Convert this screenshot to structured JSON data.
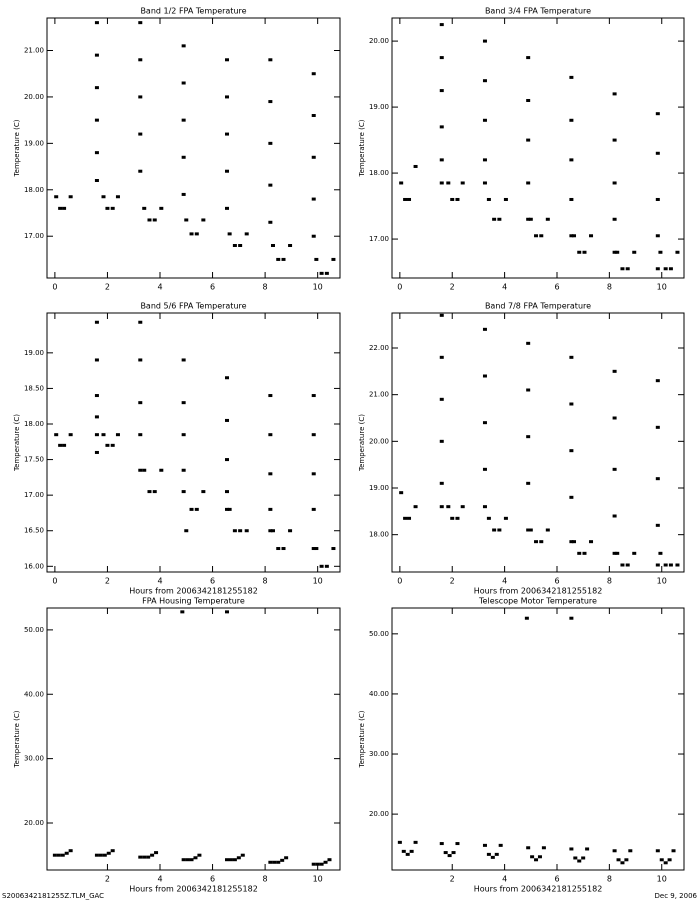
{
  "chart_data": [
    {
      "type": "scatter",
      "title": "Band 1/2 FPA Temperature",
      "y_label": "Temperature (C)",
      "color": "#000000",
      "xlim": [
        -0.3,
        10.85
      ],
      "xticks": [
        0,
        2,
        4,
        6,
        8,
        10
      ],
      "ylim": [
        16.1,
        21.7
      ],
      "yticks": [
        {
          "value": 17,
          "label": "17.00"
        },
        {
          "value": 18,
          "label": "18.00"
        },
        {
          "value": 19,
          "label": "19.00"
        },
        {
          "value": 20,
          "label": "20.00"
        },
        {
          "value": 21,
          "label": "21.00"
        }
      ],
      "x": [
        0.05,
        0.2,
        0.35,
        0.6,
        1.6,
        1.6,
        1.6,
        1.6,
        1.6,
        1.6,
        1.85,
        2.0,
        2.2,
        2.4,
        3.25,
        3.25,
        3.25,
        3.25,
        3.25,
        3.4,
        3.6,
        3.8,
        4.05,
        4.9,
        4.9,
        4.9,
        4.9,
        4.9,
        5.0,
        5.2,
        5.4,
        5.65,
        6.55,
        6.55,
        6.55,
        6.55,
        6.55,
        6.65,
        6.85,
        7.05,
        7.3,
        8.2,
        8.2,
        8.2,
        8.2,
        8.2,
        8.3,
        8.5,
        8.7,
        8.95,
        9.85,
        9.85,
        9.85,
        9.85,
        9.85,
        9.95,
        10.15,
        10.35,
        10.6
      ],
      "values": [
        17.85,
        17.6,
        17.6,
        17.85,
        21.6,
        20.9,
        20.2,
        19.5,
        18.8,
        18.2,
        17.85,
        17.6,
        17.6,
        17.85,
        21.6,
        20.8,
        20.0,
        19.2,
        18.4,
        17.6,
        17.35,
        17.35,
        17.6,
        21.1,
        20.3,
        19.5,
        18.7,
        17.9,
        17.35,
        17.05,
        17.05,
        17.35,
        20.8,
        20.0,
        19.2,
        18.4,
        17.6,
        17.05,
        16.8,
        16.8,
        17.05,
        20.8,
        19.9,
        19.0,
        18.1,
        17.3,
        16.8,
        16.5,
        16.5,
        16.8,
        20.5,
        19.6,
        18.7,
        17.8,
        17.0,
        16.5,
        16.2,
        16.2,
        16.5
      ]
    },
    {
      "type": "scatter",
      "title": "Band 3/4 FPA Temperature",
      "y_label": "Temperature (C)",
      "color": "#000000",
      "xlim": [
        -0.3,
        10.85
      ],
      "xticks": [
        0,
        2,
        4,
        6,
        8,
        10
      ],
      "ylim": [
        16.41,
        20.35
      ],
      "yticks": [
        {
          "value": 17,
          "label": "17.00"
        },
        {
          "value": 18,
          "label": "18.00"
        },
        {
          "value": 19,
          "label": "19.00"
        },
        {
          "value": 20,
          "label": "20.00"
        }
      ],
      "x": [
        0.05,
        0.2,
        0.35,
        0.6,
        1.6,
        1.6,
        1.6,
        1.6,
        1.6,
        1.6,
        1.85,
        2.0,
        2.2,
        2.4,
        3.25,
        3.25,
        3.25,
        3.25,
        3.25,
        3.4,
        3.6,
        3.8,
        4.05,
        4.9,
        4.9,
        4.9,
        4.9,
        4.9,
        5.0,
        5.2,
        5.4,
        5.65,
        6.55,
        6.55,
        6.55,
        6.55,
        6.55,
        6.65,
        6.85,
        7.05,
        7.3,
        8.2,
        8.2,
        8.2,
        8.2,
        8.2,
        8.3,
        8.5,
        8.7,
        8.95,
        9.85,
        9.85,
        9.85,
        9.85,
        9.85,
        9.95,
        10.15,
        10.35,
        10.6
      ],
      "values": [
        17.85,
        17.6,
        17.6,
        18.1,
        20.25,
        19.75,
        19.25,
        18.7,
        18.2,
        17.85,
        17.85,
        17.6,
        17.6,
        17.85,
        20.0,
        19.4,
        18.8,
        18.2,
        17.85,
        17.6,
        17.3,
        17.3,
        17.6,
        19.75,
        19.1,
        18.5,
        17.85,
        17.3,
        17.3,
        17.05,
        17.05,
        17.3,
        19.45,
        18.8,
        18.2,
        17.6,
        17.05,
        17.05,
        16.8,
        16.8,
        17.05,
        19.2,
        18.5,
        17.85,
        17.3,
        16.8,
        16.8,
        16.55,
        16.55,
        16.8,
        18.9,
        18.3,
        17.6,
        17.05,
        16.55,
        16.8,
        16.55,
        16.55,
        16.8
      ]
    },
    {
      "type": "scatter",
      "title": "Band 5/6 FPA Temperature",
      "x_label": "Hours from 2006342181255182",
      "y_label": "Temperature (C)",
      "color": "#000000",
      "xlim": [
        -0.3,
        10.85
      ],
      "xticks": [
        0,
        2,
        4,
        6,
        8,
        10
      ],
      "ylim": [
        15.92,
        19.56
      ],
      "yticks": [
        {
          "value": 16,
          "label": "16.00"
        },
        {
          "value": 16.5,
          "label": "16.50"
        },
        {
          "value": 17,
          "label": "17.00"
        },
        {
          "value": 17.5,
          "label": "17.50"
        },
        {
          "value": 18,
          "label": "18.00"
        },
        {
          "value": 18.5,
          "label": "18.50"
        },
        {
          "value": 19,
          "label": "19.00"
        }
      ],
      "x": [
        0.05,
        0.2,
        0.35,
        0.6,
        1.6,
        1.6,
        1.6,
        1.6,
        1.6,
        1.6,
        1.85,
        2.0,
        2.2,
        2.4,
        3.25,
        3.25,
        3.25,
        3.25,
        3.25,
        3.4,
        3.6,
        3.8,
        4.05,
        4.9,
        4.9,
        4.9,
        4.9,
        4.9,
        5.0,
        5.2,
        5.4,
        5.65,
        6.55,
        6.55,
        6.55,
        6.55,
        6.55,
        6.65,
        6.85,
        7.05,
        7.3,
        8.2,
        8.2,
        8.2,
        8.2,
        8.2,
        8.3,
        8.5,
        8.7,
        8.95,
        9.85,
        9.85,
        9.85,
        9.85,
        9.85,
        9.95,
        10.15,
        10.35,
        10.6
      ],
      "values": [
        17.85,
        17.7,
        17.7,
        17.85,
        19.43,
        18.9,
        18.4,
        18.1,
        17.85,
        17.6,
        17.85,
        17.7,
        17.7,
        17.85,
        19.43,
        18.9,
        18.3,
        17.85,
        17.35,
        17.35,
        17.05,
        17.05,
        17.35,
        18.9,
        18.3,
        17.85,
        17.35,
        17.05,
        16.5,
        16.8,
        16.8,
        17.05,
        18.65,
        18.05,
        17.5,
        17.05,
        16.8,
        16.8,
        16.5,
        16.5,
        16.5,
        18.4,
        17.85,
        17.3,
        16.8,
        16.5,
        16.5,
        16.25,
        16.25,
        16.5,
        18.4,
        17.85,
        17.3,
        16.8,
        16.25,
        16.25,
        16.0,
        16.0,
        16.25
      ]
    },
    {
      "type": "scatter",
      "title": "Band 7/8 FPA Temperature",
      "x_label": "Hours from 2006342181255182",
      "y_label": "Temperature (C)",
      "color": "#000000",
      "xlim": [
        -0.3,
        10.85
      ],
      "xticks": [
        0,
        2,
        4,
        6,
        8,
        10
      ],
      "ylim": [
        17.2,
        22.75
      ],
      "yticks": [
        {
          "value": 18,
          "label": "18.00"
        },
        {
          "value": 19,
          "label": "19.00"
        },
        {
          "value": 20,
          "label": "20.00"
        },
        {
          "value": 21,
          "label": "21.00"
        },
        {
          "value": 22,
          "label": "22.00"
        }
      ],
      "x": [
        0.05,
        0.2,
        0.35,
        0.6,
        1.6,
        1.6,
        1.6,
        1.6,
        1.6,
        1.6,
        1.85,
        2.0,
        2.2,
        2.4,
        3.25,
        3.25,
        3.25,
        3.25,
        3.25,
        3.4,
        3.6,
        3.8,
        4.05,
        4.9,
        4.9,
        4.9,
        4.9,
        4.9,
        5.0,
        5.2,
        5.4,
        5.65,
        6.55,
        6.55,
        6.55,
        6.55,
        6.55,
        6.65,
        6.85,
        7.05,
        7.3,
        8.2,
        8.2,
        8.2,
        8.2,
        8.2,
        8.3,
        8.5,
        8.7,
        8.95,
        9.85,
        9.85,
        9.85,
        9.85,
        9.85,
        9.95,
        10.15,
        10.35,
        10.6
      ],
      "values": [
        18.9,
        18.35,
        18.35,
        18.6,
        22.7,
        21.8,
        20.9,
        20.0,
        19.1,
        18.6,
        18.6,
        18.35,
        18.35,
        18.6,
        22.4,
        21.4,
        20.4,
        19.4,
        18.6,
        18.35,
        18.1,
        18.1,
        18.35,
        22.1,
        21.1,
        20.1,
        19.1,
        18.1,
        18.1,
        17.85,
        17.85,
        18.1,
        21.8,
        20.8,
        19.8,
        18.8,
        17.85,
        17.85,
        17.6,
        17.6,
        17.85,
        21.5,
        20.5,
        19.4,
        18.4,
        17.6,
        17.6,
        17.35,
        17.35,
        17.6,
        21.3,
        20.3,
        19.2,
        18.2,
        17.35,
        17.6,
        17.35,
        17.35,
        17.35
      ]
    },
    {
      "type": "scatter",
      "title": "FPA Housing Temperature",
      "x_label": "Hours from 2006342181255182",
      "y_label": "Temperature (C)",
      "color": "#000000",
      "xlim": [
        -0.3,
        10.85
      ],
      "xticks": [
        2,
        4,
        6,
        8,
        10
      ],
      "ylim": [
        12.7,
        53.4
      ],
      "yticks": [
        {
          "value": 20,
          "label": "20.00"
        },
        {
          "value": 30,
          "label": "30.00"
        },
        {
          "value": 40,
          "label": "40.00"
        },
        {
          "value": 50,
          "label": "50.00"
        }
      ],
      "x": [
        0,
        0.15,
        0.3,
        0.45,
        0.6,
        1.6,
        1.75,
        1.9,
        2.05,
        2.2,
        3.25,
        3.4,
        3.55,
        3.7,
        3.85,
        4.9,
        5.05,
        5.2,
        5.35,
        5.5,
        6.55,
        6.7,
        6.85,
        7.0,
        7.15,
        8.2,
        8.35,
        8.5,
        8.65,
        8.8,
        9.85,
        10.0,
        10.15,
        10.3,
        10.45,
        4.85,
        6.55
      ],
      "values": [
        15.0,
        15.0,
        15.0,
        15.3,
        15.7,
        15.0,
        15.0,
        15.0,
        15.3,
        15.7,
        14.7,
        14.7,
        14.7,
        15.0,
        15.4,
        14.3,
        14.3,
        14.3,
        14.6,
        15.0,
        14.3,
        14.3,
        14.3,
        14.6,
        15.0,
        13.9,
        13.9,
        13.9,
        14.2,
        14.6,
        13.6,
        13.6,
        13.6,
        13.9,
        14.3,
        52.8,
        52.8
      ]
    },
    {
      "type": "scatter",
      "title": "Telescope Motor Temperature",
      "x_label": "Hours from 2006342181255182",
      "y_label": "Temperature (C)",
      "color": "#000000",
      "xlim": [
        -0.3,
        10.85
      ],
      "xticks": [
        2,
        4,
        6,
        8,
        10
      ],
      "ylim": [
        10.7,
        54.3
      ],
      "yticks": [
        {
          "value": 20,
          "label": "20.00"
        },
        {
          "value": 30,
          "label": "30.00"
        },
        {
          "value": 40,
          "label": "40.00"
        },
        {
          "value": 50,
          "label": "50.00"
        }
      ],
      "x": [
        0,
        0.15,
        0.3,
        0.45,
        0.6,
        1.6,
        1.75,
        1.9,
        2.05,
        2.2,
        3.25,
        3.4,
        3.55,
        3.7,
        3.85,
        4.9,
        5.05,
        5.2,
        5.35,
        5.5,
        6.55,
        6.7,
        6.85,
        7.0,
        7.15,
        8.2,
        8.35,
        8.5,
        8.65,
        8.8,
        9.85,
        10.0,
        10.15,
        10.3,
        10.45,
        4.85,
        6.55
      ],
      "values": [
        15.3,
        13.8,
        13.3,
        13.8,
        15.3,
        15.1,
        13.6,
        13.1,
        13.6,
        15.1,
        14.8,
        13.3,
        12.8,
        13.3,
        14.8,
        14.4,
        12.9,
        12.4,
        12.9,
        14.4,
        14.2,
        12.7,
        12.2,
        12.7,
        14.2,
        13.9,
        12.4,
        11.9,
        12.4,
        13.9,
        13.9,
        12.4,
        11.9,
        12.4,
        13.9,
        52.6,
        52.6
      ]
    }
  ],
  "footer": {
    "left": "S2006342181255Z.TLM_GAC",
    "right": "Dec 9, 2006"
  }
}
